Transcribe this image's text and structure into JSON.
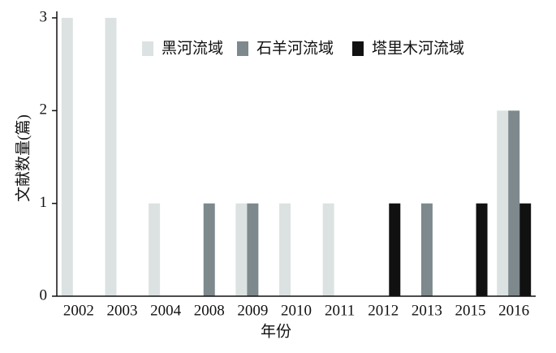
{
  "chart_data": {
    "type": "bar",
    "x_label": "年份",
    "y_label": "文献数量(篇)",
    "categories": [
      "2002",
      "2003",
      "2004",
      "2008",
      "2009",
      "2010",
      "2011",
      "2012",
      "2013",
      "2015",
      "2016"
    ],
    "series": [
      {
        "name": "黑河流域",
        "color": "#dce2e2",
        "values": [
          3,
          3,
          1,
          0,
          1,
          1,
          1,
          0,
          0,
          0,
          2
        ]
      },
      {
        "name": "石羊河流域",
        "color": "#7d898c",
        "values": [
          0,
          0,
          0,
          1,
          1,
          0,
          0,
          0,
          1,
          0,
          2
        ]
      },
      {
        "name": "塔里木河流域",
        "color": "#111111",
        "values": [
          0,
          0,
          0,
          0,
          0,
          0,
          0,
          1,
          0,
          1,
          1
        ]
      }
    ],
    "ylim": [
      0,
      3
    ],
    "yticks": [
      0,
      1,
      2,
      3
    ],
    "grid": false,
    "legend": "top"
  }
}
